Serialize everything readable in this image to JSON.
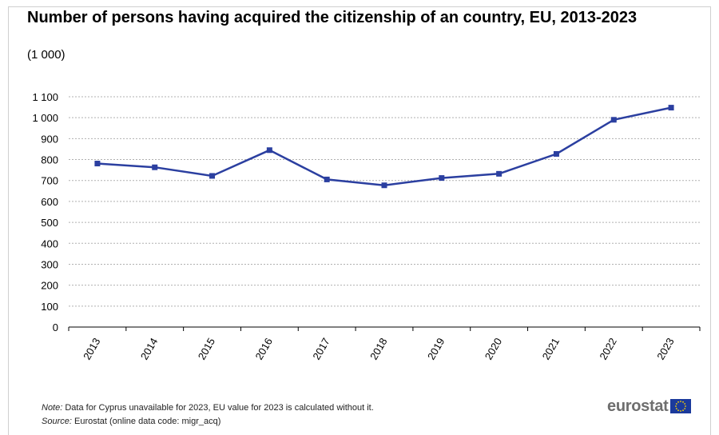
{
  "chart_data": {
    "type": "line",
    "title": "Number of persons having acquired the citizenship of an country, EU, 2013-2023",
    "subtitle": "(1 000)",
    "xlabel": "",
    "ylabel": "",
    "categories": [
      "2013",
      "2014",
      "2015",
      "2016",
      "2017",
      "2018",
      "2019",
      "2020",
      "2021",
      "2022",
      "2023"
    ],
    "series": [
      {
        "values": [
          781,
          763,
          722,
          845,
          705,
          677,
          712,
          732,
          827,
          990,
          1048
        ]
      }
    ],
    "ylim": [
      0,
      1100
    ],
    "yticks": [
      0,
      100,
      200,
      300,
      400,
      500,
      600,
      700,
      800,
      900,
      1000,
      1100
    ],
    "ytick_labels": [
      "0",
      "100",
      "200",
      "300",
      "400",
      "500",
      "600",
      "700",
      "800",
      "900",
      "1 000",
      "1 100"
    ],
    "grid": true,
    "legend": "none",
    "line_color": "#2b3fa0"
  },
  "footnotes": {
    "note_label": "Note:",
    "note_text": "Data for Cyprus unavailable for 2023, EU value for 2023 is calculated without it.",
    "source_label": "Source:",
    "source_text": "Eurostat (online data code: migr_acq)"
  },
  "logo": {
    "text": "eurostat",
    "flag_color": "#1b3a9c",
    "star_color": "#ffd500"
  }
}
